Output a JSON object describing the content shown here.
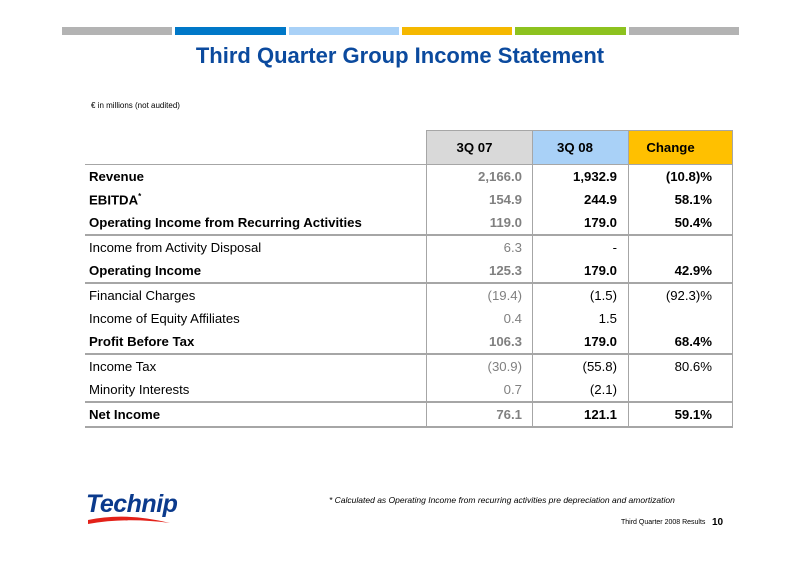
{
  "header": {
    "bar_colors": [
      "#b3b3b3",
      "#0078c8",
      "#a9d1f7",
      "#f5b800",
      "#8dc21f",
      "#b3b3b3"
    ],
    "title": "Third Quarter Group Income Statement",
    "subtitle": "€ in millions (not audited)"
  },
  "table": {
    "columns": [
      "",
      "3Q 07",
      "3Q 08",
      "Change"
    ],
    "rows": [
      {
        "label": "Revenue",
        "sup": "",
        "q07": "2,166.0",
        "q08": "1,932.9",
        "change": "(10.8)%"
      },
      {
        "label": "EBITDA",
        "sup": "*",
        "q07": "154.9",
        "q08": "244.9",
        "change": "58.1%"
      },
      {
        "label": "Operating Income from Recurring Activities",
        "sup": "",
        "q07": "119.0",
        "q08": "179.0",
        "change": "50.4%"
      },
      {
        "label": "Income from Activity Disposal",
        "sup": "",
        "q07": "6.3",
        "q08": "-",
        "change": ""
      },
      {
        "label": "Operating Income",
        "sup": "",
        "q07": "125.3",
        "q08": "179.0",
        "change": "42.9%"
      },
      {
        "label": "Financial Charges",
        "sup": "",
        "q07": "(19.4)",
        "q08": "(1.5)",
        "change": "(92.3)%"
      },
      {
        "label": "Income of Equity Affiliates",
        "sup": "",
        "q07": "0.4",
        "q08": "1.5",
        "change": ""
      },
      {
        "label": "Profit Before Tax",
        "sup": "",
        "q07": "106.3",
        "q08": "179.0",
        "change": "68.4%"
      },
      {
        "label": "Income Tax",
        "sup": "",
        "q07": "(30.9)",
        "q08": "(55.8)",
        "change": "80.6%"
      },
      {
        "label": "Minority Interests",
        "sup": "",
        "q07": "0.7",
        "q08": "(2.1)",
        "change": ""
      },
      {
        "label": "Net Income",
        "sup": "",
        "q07": "76.1",
        "q08": "121.1",
        "change": "59.1%"
      }
    ]
  },
  "logo": {
    "text": "Technip"
  },
  "footnote": "* Calculated as Operating Income from recurring activities pre depreciation and amortization",
  "footer": {
    "label": "Third Quarter 2008 Results",
    "page": "10"
  }
}
